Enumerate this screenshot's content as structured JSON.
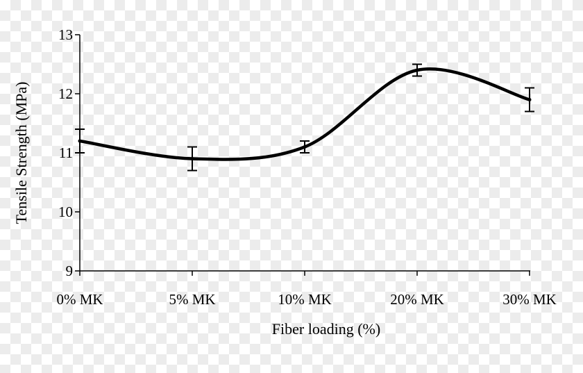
{
  "chart_data": {
    "type": "line",
    "title": "",
    "xlabel": "Fiber loading (%)",
    "ylabel": "Tensile Strength (MPa)",
    "categories": [
      "0% MK",
      "5% MK",
      "10% MK",
      "20% MK",
      "30% MK"
    ],
    "series": [
      {
        "name": "Tensile Strength",
        "values": [
          11.2,
          10.9,
          11.1,
          12.4,
          11.9
        ],
        "errors": [
          0.2,
          0.2,
          0.1,
          0.1,
          0.2
        ]
      }
    ],
    "ylim": [
      9,
      13
    ],
    "yticks": [
      "9",
      "10",
      "11",
      "12",
      "13"
    ],
    "grid": false,
    "smooth": true,
    "color": "#000000"
  }
}
